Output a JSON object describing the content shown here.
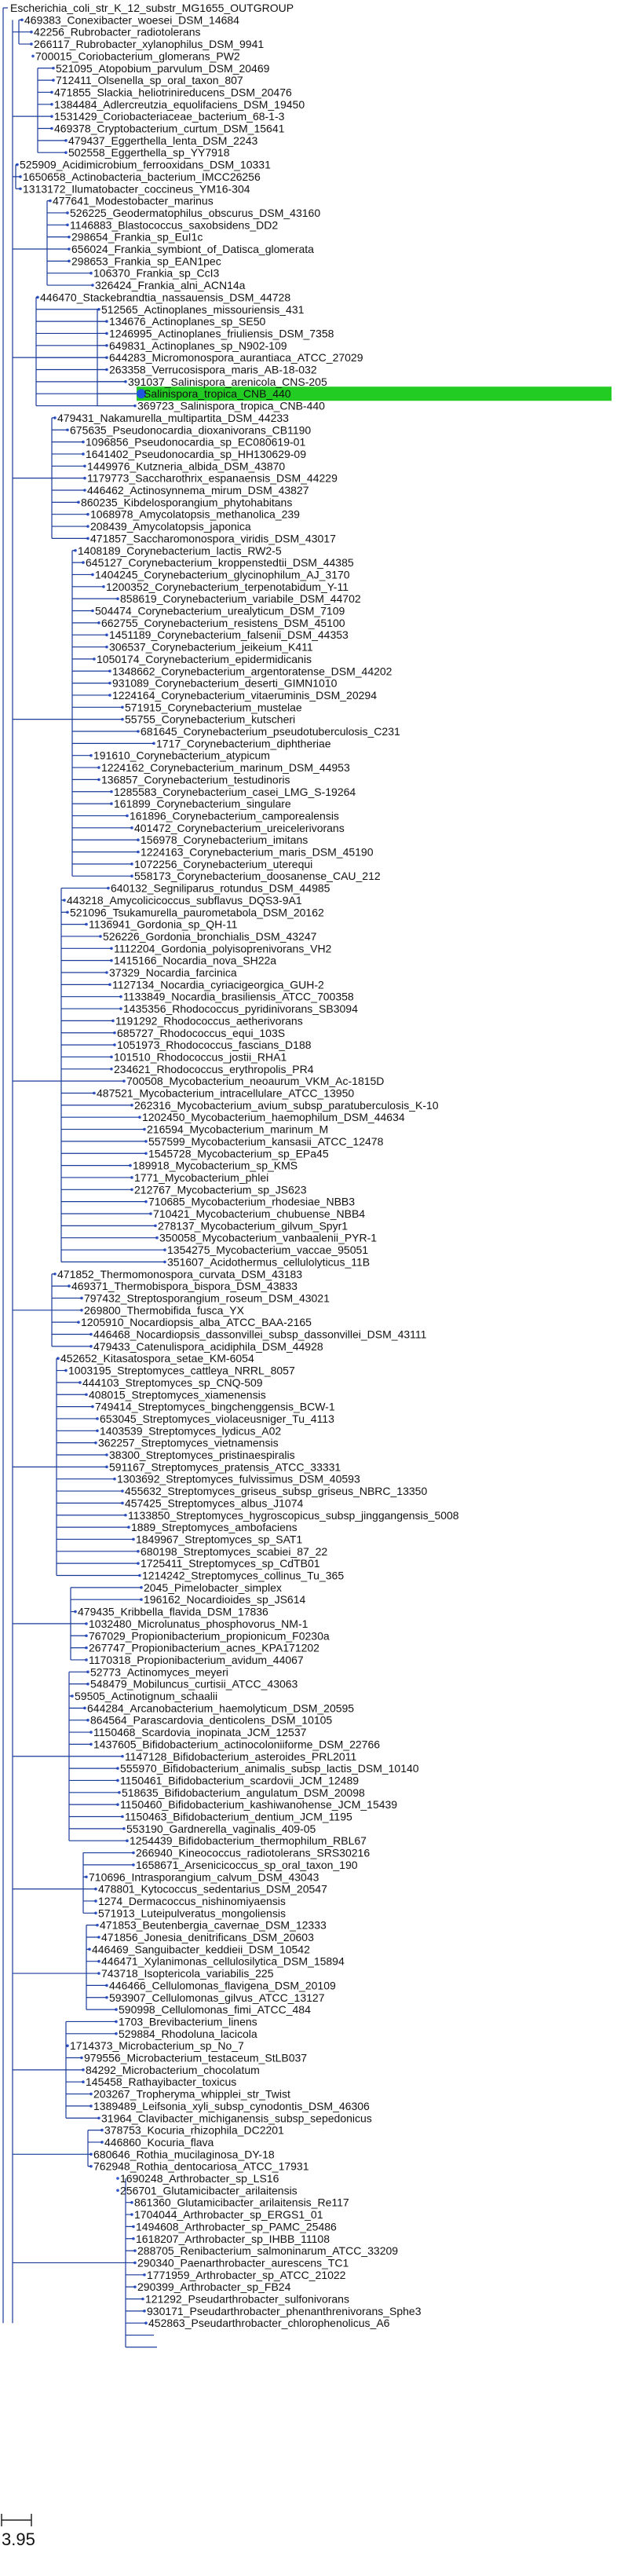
{
  "tree": {
    "tips": [
      "Escherichia_coli_str_K_12_substr_MG1655_OUTGROUP",
      "469383_Conexibacter_woesei_DSM_14684",
      "42256_Rubrobacter_radiotolerans",
      "266117_Rubrobacter_xylanophilus_DSM_9941",
      "700015_Coriobacterium_glomerans_PW2",
      "521095_Atopobium_parvulum_DSM_20469",
      "712411_Olsenella_sp_oral_taxon_807",
      "471855_Slackia_heliotrinireducens_DSM_20476",
      "1384484_Adlercreutzia_equolifaciens_DSM_19450",
      "1531429_Coriobacteriaceae_bacterium_68-1-3",
      "469378_Cryptobacterium_curtum_DSM_15641",
      "479437_Eggerthella_lenta_DSM_2243",
      "502558_Eggerthella_sp_YY7918",
      "525909_Acidimicrobium_ferrooxidans_DSM_10331",
      "1650658_Actinobacteria_bacterium_IMCC26256",
      "1313172_Ilumatobacter_coccineus_YM16-304",
      "477641_Modestobacter_marinus",
      "526225_Geodermatophilus_obscurus_DSM_43160",
      "1146883_Blastococcus_saxobsidens_DD2",
      "298654_Frankia_sp_EuI1c",
      "656024_Frankia_symbiont_of_Datisca_glomerata",
      "298653_Frankia_sp_EAN1pec",
      "106370_Frankia_sp_CcI3",
      "326424_Frankia_alni_ACN14a",
      "446470_Stackebrandtia_nassauensis_DSM_44728",
      "512565_Actinoplanes_missouriensis_431",
      "134676_Actinoplanes_sp_SE50",
      "1246995_Actinoplanes_friuliensis_DSM_7358",
      "649831_Actinoplanes_sp_N902-109",
      "644283_Micromonospora_aurantiaca_ATCC_27029",
      "263358_Verrucosispora_maris_AB-18-032",
      "391037_Salinispora_arenicola_CNS-205",
      "Salinispora_tropica_CNB_440",
      "369723_Salinispora_tropica_CNB-440",
      "479431_Nakamurella_multipartita_DSM_44233",
      "675635_Pseudonocardia_dioxanivorans_CB1190",
      "1096856_Pseudonocardia_sp_EC080619-01",
      "1641402_Pseudonocardia_sp_HH130629-09",
      "1449976_Kutzneria_albida_DSM_43870",
      "1179773_Saccharothrix_espanaensis_DSM_44229",
      "446462_Actinosynnema_mirum_DSM_43827",
      "860235_Kibdelosporangium_phytohabitans",
      "1068978_Amycolatopsis_methanolica_239",
      "208439_Amycolatopsis_japonica",
      "471857_Saccharomonospora_viridis_DSM_43017",
      "1408189_Corynebacterium_lactis_RW2-5",
      "645127_Corynebacterium_kroppenstedtii_DSM_44385",
      "1404245_Corynebacterium_glycinophilum_AJ_3170",
      "1200352_Corynebacterium_terpenotabidum_Y-11",
      "858619_Corynebacterium_variabile_DSM_44702",
      "504474_Corynebacterium_urealyticum_DSM_7109",
      "662755_Corynebacterium_resistens_DSM_45100",
      "1451189_Corynebacterium_falsenii_DSM_44353",
      "306537_Corynebacterium_jeikeium_K411",
      "1050174_Corynebacterium_epidermidicanis",
      "1348662_Corynebacterium_argentoratense_DSM_44202",
      "931089_Corynebacterium_deserti_GIMN1010",
      "1224164_Corynebacterium_vitaeruminis_DSM_20294",
      "571915_Corynebacterium_mustelae",
      "55755_Corynebacterium_kutscheri",
      "681645_Corynebacterium_pseudotuberculosis_C231",
      "1717_Corynebacterium_diphtheriae",
      "191610_Corynebacterium_atypicum",
      "1224162_Corynebacterium_marinum_DSM_44953",
      "136857_Corynebacterium_testudinoris",
      "1285583_Corynebacterium_casei_LMG_S-19264",
      "161899_Corynebacterium_singulare",
      "161896_Corynebacterium_camporealensis",
      "401472_Corynebacterium_ureicelerivorans",
      "156978_Corynebacterium_imitans",
      "1224163_Corynebacterium_maris_DSM_45190",
      "1072256_Corynebacterium_uterequi",
      "558173_Corynebacterium_doosanense_CAU_212",
      "640132_Segniliparus_rotundus_DSM_44985",
      "443218_Amycolicicoccus_subflavus_DQS3-9A1",
      "521096_Tsukamurella_paurometabola_DSM_20162",
      "1136941_Gordonia_sp_QH-11",
      "526226_Gordonia_bronchialis_DSM_43247",
      "1112204_Gordonia_polyisoprenivorans_VH2",
      "1415166_Nocardia_nova_SH22a",
      "37329_Nocardia_farcinica",
      "1127134_Nocardia_cyriacigeorgica_GUH-2",
      "1133849_Nocardia_brasiliensis_ATCC_700358",
      "1435356_Rhodococcus_pyridinivorans_SB3094",
      "1191292_Rhodococcus_aetherivorans",
      "685727_Rhodococcus_equi_103S",
      "1051973_Rhodococcus_fascians_D188",
      "101510_Rhodococcus_jostii_RHA1",
      "234621_Rhodococcus_erythropolis_PR4",
      "700508_Mycobacterium_neoaurum_VKM_Ac-1815D",
      "487521_Mycobacterium_intracellulare_ATCC_13950",
      "262316_Mycobacterium_avium_subsp_paratuberculosis_K-10",
      "1202450_Mycobacterium_haemophilum_DSM_44634",
      "216594_Mycobacterium_marinum_M",
      "557599_Mycobacterium_kansasii_ATCC_12478",
      "1545728_Mycobacterium_sp_EPa45",
      "189918_Mycobacterium_sp_KMS",
      "1771_Mycobacterium_phlei",
      "212767_Mycobacterium_sp_JS623",
      "710685_Mycobacterium_rhodesiae_NBB3",
      "710421_Mycobacterium_chubuense_NBB4",
      "278137_Mycobacterium_gilvum_Spyr1",
      "350058_Mycobacterium_vanbaalenii_PYR-1",
      "1354275_Mycobacterium_vaccae_95051",
      "351607_Acidothermus_cellulolyticus_11B",
      "471852_Thermomonospora_curvata_DSM_43183",
      "469371_Thermobispora_bispora_DSM_43833",
      "797432_Streptosporangium_roseum_DSM_43021",
      "269800_Thermobifida_fusca_YX",
      "1205910_Nocardiopsis_alba_ATCC_BAA-2165",
      "446468_Nocardiopsis_dassonvillei_subsp_dassonvillei_DSM_43111",
      "479433_Catenulispora_acidiphila_DSM_44928",
      "452652_Kitasatospora_setae_KM-6054",
      "1003195_Streptomyces_cattleya_NRRL_8057",
      "444103_Streptomyces_sp_CNQ-509",
      "408015_Streptomyces_xiamenensis",
      "749414_Streptomyces_bingchenggensis_BCW-1",
      "653045_Streptomyces_violaceusniger_Tu_4113",
      "1403539_Streptomyces_lydicus_A02",
      "362257_Streptomyces_vietnamensis",
      "38300_Streptomyces_pristinaespiralis",
      "591167_Streptomyces_pratensis_ATCC_33331",
      "1303692_Streptomyces_fulvissimus_DSM_40593",
      "455632_Streptomyces_griseus_subsp_griseus_NBRC_13350",
      "457425_Streptomyces_albus_J1074",
      "1133850_Streptomyces_hygroscopicus_subsp_jinggangensis_5008",
      "1889_Streptomyces_ambofaciens",
      "1849967_Streptomyces_sp_SAT1",
      "680198_Streptomyces_scabiei_87_22",
      "1725411_Streptomyces_sp_CdTB01",
      "1214242_Streptomyces_collinus_Tu_365",
      "2045_Pimelobacter_simplex",
      "196162_Nocardioides_sp_JS614",
      "479435_Kribbella_flavida_DSM_17836",
      "1032480_Microlunatus_phosphovorus_NM-1",
      "767029_Propionibacterium_propionicum_F0230a",
      "267747_Propionibacterium_acnes_KPA171202",
      "1170318_Propionibacterium_avidum_44067",
      "52773_Actinomyces_meyeri",
      "548479_Mobiluncus_curtisii_ATCC_43063",
      "59505_Actinotignum_schaalii",
      "644284_Arcanobacterium_haemolyticum_DSM_20595",
      "864564_Parascardovia_denticolens_DSM_10105",
      "1150468_Scardovia_inopinata_JCM_12537",
      "1437605_Bifidobacterium_actinocoloniiforme_DSM_22766",
      "1147128_Bifidobacterium_asteroides_PRL2011",
      "555970_Bifidobacterium_animalis_subsp_lactis_DSM_10140",
      "1150461_Bifidobacterium_scardovii_JCM_12489",
      "518635_Bifidobacterium_angulatum_DSM_20098",
      "1150460_Bifidobacterium_kashiwanohense_JCM_15439",
      "1150463_Bifidobacterium_dentium_JCM_1195",
      "553190_Gardnerella_vaginalis_409-05",
      "1254439_Bifidobacterium_thermophilum_RBL67",
      "266940_Kineococcus_radiotolerans_SRS30216",
      "1658671_Arsenicicoccus_sp_oral_taxon_190",
      "710696_Intrasporangium_calvum_DSM_43043",
      "478801_Kytococcus_sedentarius_DSM_20547",
      "1274_Dermacoccus_nishinomiyaensis",
      "571913_Luteipulveratus_mongoliensis",
      "471853_Beutenbergia_cavernae_DSM_12333",
      "471856_Jonesia_denitrificans_DSM_20603",
      "446469_Sanguibacter_keddieii_DSM_10542",
      "446471_Xylanimonas_cellulosilytica_DSM_15894",
      "743718_Isoptericola_variabilis_225",
      "446466_Cellulomonas_flavigena_DSM_20109",
      "593907_Cellulomonas_gilvus_ATCC_13127",
      "590998_Cellulomonas_fimi_ATCC_484",
      "1703_Brevibacterium_linens",
      "529884_Rhodoluna_lacicola",
      "1714373_Microbacterium_sp_No_7",
      "979556_Microbacterium_testaceum_StLB037",
      "84292_Microbacterium_chocolatum",
      "145458_Rathayibacter_toxicus",
      "203267_Tropheryma_whipplei_str_Twist",
      "1389489_Leifsonia_xyli_subsp_cynodontis_DSM_46306",
      "31964_Clavibacter_michiganensis_subsp_sepedonicus",
      "378753_Kocuria_rhizophila_DC2201",
      "446860_Kocuria_flava",
      "680646_Rothia_mucilaginosa_DY-18",
      "762948_Rothia_dentocariosa_ATCC_17931",
      "1690248_Arthrobacter_sp_LS16",
      "256701_Glutamicibacter_arilaitensis",
      "861360_Glutamicibacter_arilaitensis_Re117",
      "1704044_Arthrobacter_sp_ERGS1_01",
      "1494608_Arthrobacter_sp_PAMC_25486",
      "1618207_Arthrobacter_sp_IHBB_11108",
      "288705_Renibacterium_salmoninarum_ATCC_33209",
      "290340_Paenarthrobacter_aurescens_TC1",
      "1771959_Arthrobacter_sp_ATCC_21022",
      "290399_Arthrobacter_sp_FB24",
      "121292_Pseudarthrobacter_sulfonivorans",
      "930171_Pseudarthrobacter_phenanthrenivorans_Sphe3",
      "452863_Pseudarthrobacter_chlorophenolicus_A6"
    ],
    "highlight_tip": "Salinispora_tropica_CNB_440",
    "highlight_color": "#22cc22",
    "branch_color": "#1a3a9a",
    "node_color": "#3355cc",
    "scale_label": "3.95"
  }
}
